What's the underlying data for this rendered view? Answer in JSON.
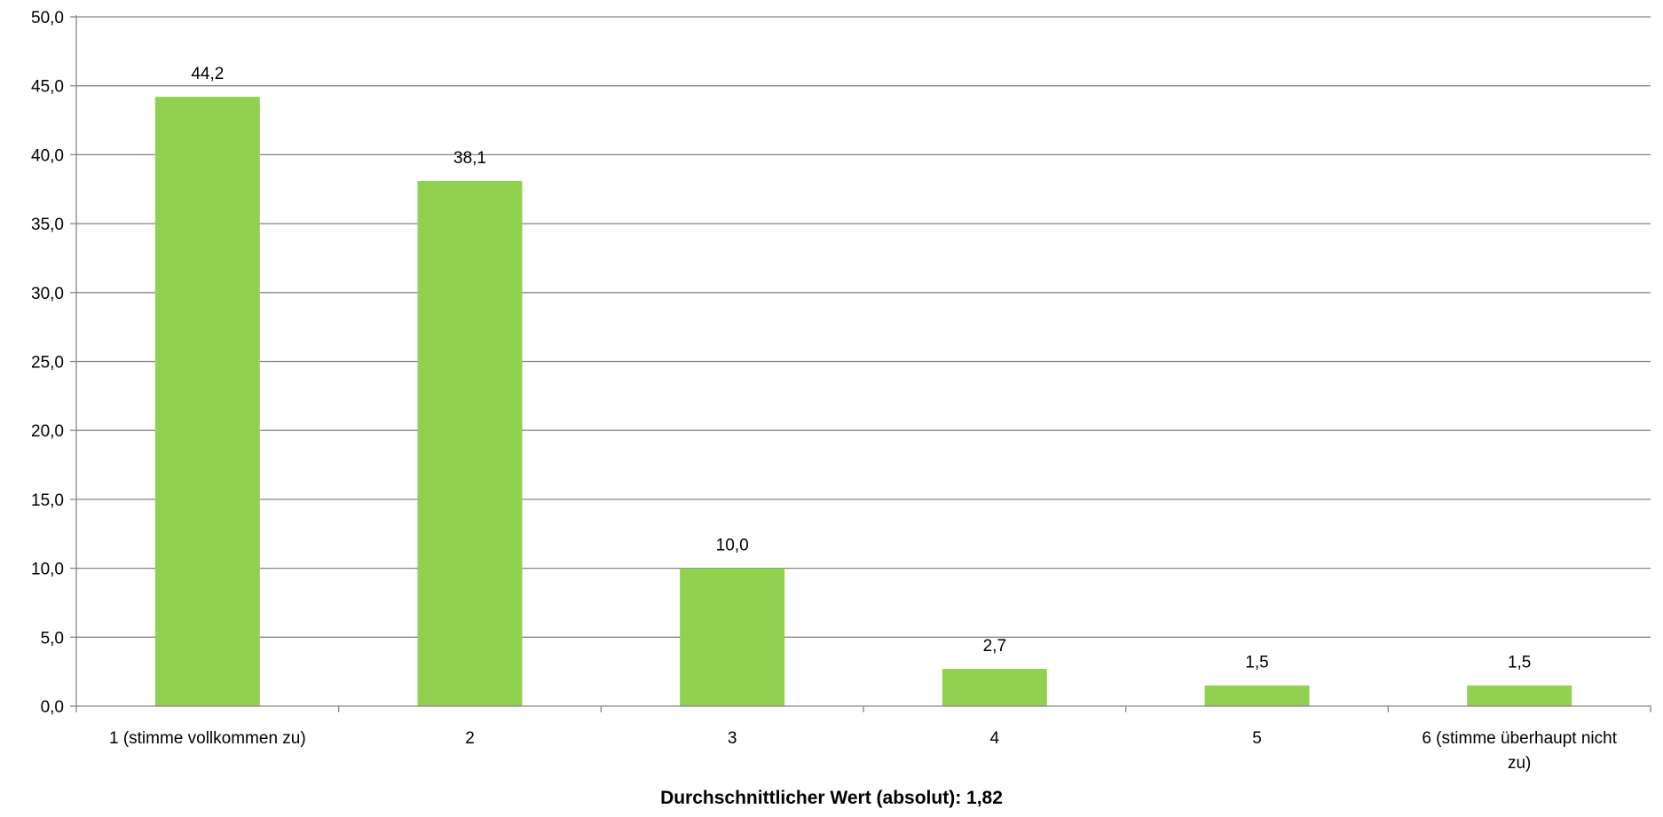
{
  "chart_data": {
    "type": "bar",
    "categories": [
      "1 (stimme vollkommen zu)",
      "2",
      "3",
      "4",
      "5",
      "6 (stimme überhaupt nicht zu)"
    ],
    "category_lines": [
      [
        "1 (stimme vollkommen zu)"
      ],
      [
        "2"
      ],
      [
        "3"
      ],
      [
        "4"
      ],
      [
        "5"
      ],
      [
        "6 (stimme überhaupt nicht",
        "zu)"
      ]
    ],
    "values": [
      44.2,
      38.1,
      10.0,
      2.7,
      1.5,
      1.5
    ],
    "data_labels": [
      "44,2",
      "38,1",
      "10,0",
      "2,7",
      "1,5",
      "1,5"
    ],
    "y_ticks": [
      0,
      5,
      10,
      15,
      20,
      25,
      30,
      35,
      40,
      45,
      50
    ],
    "y_tick_labels": [
      "0,0",
      "5,0",
      "10,0",
      "15,0",
      "20,0",
      "25,0",
      "30,0",
      "35,0",
      "40,0",
      "45,0",
      "50,0"
    ],
    "ylim": [
      0,
      50
    ],
    "xlabel": "Durchschnittlicher Wert (absolut): 1,82",
    "ylabel": "",
    "grid": true,
    "legend": "none",
    "colors": {
      "bar": "#92d050",
      "grid": "#868686",
      "axis": "#868686"
    }
  }
}
